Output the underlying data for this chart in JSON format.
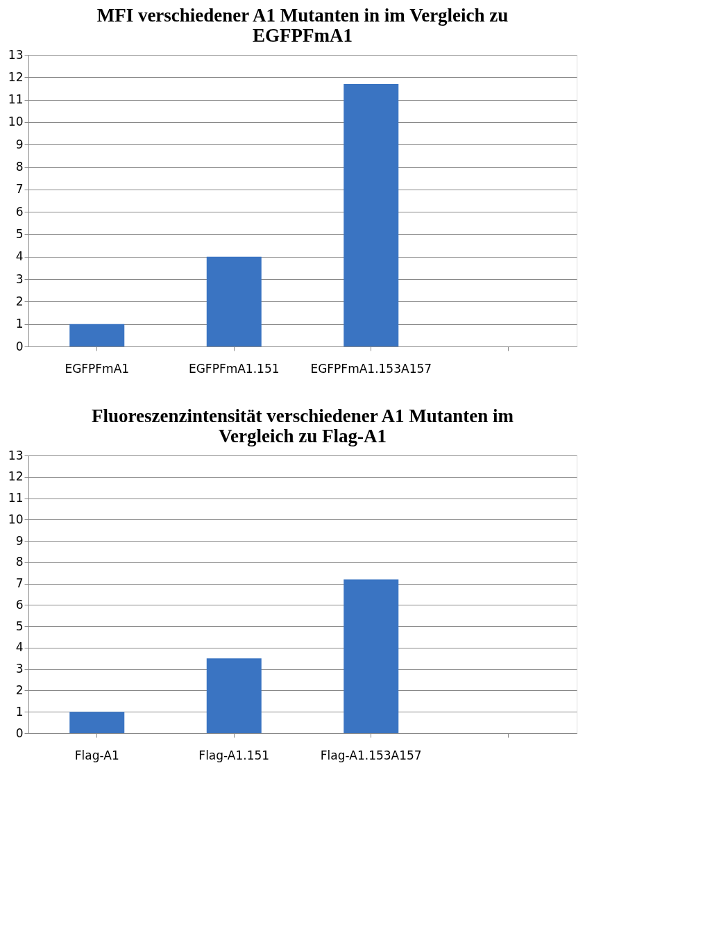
{
  "chart_data": [
    {
      "type": "bar",
      "title": "MFI verschiedener A1 Mutanten in im Vergleich zu EGFPFmA1",
      "categories": [
        "EGFPFmA1",
        "EGFPFmA1.151",
        "EGFPFmA1.153A157",
        null
      ],
      "values": [
        1,
        4,
        11.7,
        null
      ],
      "color": "#3a74c2",
      "ylim": [
        0,
        13
      ],
      "yticks": [
        0,
        1,
        2,
        3,
        4,
        5,
        6,
        7,
        8,
        9,
        10,
        11,
        12,
        13
      ],
      "grid": "y"
    },
    {
      "type": "bar",
      "title": "Fluoreszenzintensität verschiedener A1 Mutanten im Vergleich zu Flag-A1",
      "categories": [
        "Flag-A1",
        "Flag-A1.151",
        "Flag-A1.153A157",
        null
      ],
      "values": [
        1,
        3.5,
        7.2,
        null
      ],
      "color": "#3a74c2",
      "ylim": [
        0,
        13
      ],
      "yticks": [
        0,
        1,
        2,
        3,
        4,
        5,
        6,
        7,
        8,
        9,
        10,
        11,
        12,
        13
      ],
      "grid": "y"
    }
  ]
}
